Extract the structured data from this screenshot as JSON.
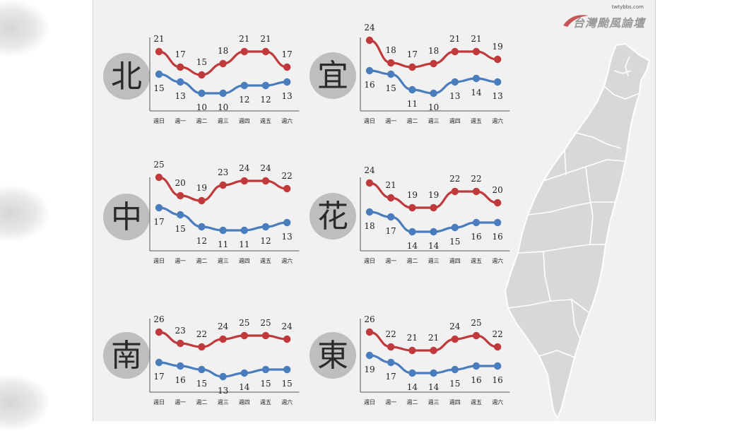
{
  "watermark": {
    "url": "twtybbs.com",
    "name": "台灣颱風論壇"
  },
  "colors": {
    "high": "#c0393b",
    "low": "#4a7dbe",
    "circle": "#bebebe",
    "region_text": "#2a2a2a"
  },
  "chart_data": [
    {
      "type": "line",
      "region": "北",
      "categories": [
        "週日",
        "週一",
        "週二",
        "週三",
        "週四",
        "週五",
        "週六"
      ],
      "series": [
        {
          "values": [
            21,
            17,
            15,
            18,
            21,
            21,
            17
          ]
        },
        {
          "values": [
            15,
            13,
            10,
            10,
            12,
            12,
            13
          ]
        }
      ]
    },
    {
      "type": "line",
      "region": "宜",
      "categories": [
        "週日",
        "週一",
        "週二",
        "週三",
        "週四",
        "週五",
        "週六"
      ],
      "series": [
        {
          "values": [
            24,
            18,
            17,
            18,
            21,
            21,
            19
          ]
        },
        {
          "values": [
            16,
            15,
            11,
            10,
            13,
            14,
            13
          ]
        }
      ]
    },
    {
      "type": "line",
      "region": "中",
      "categories": [
        "週日",
        "週一",
        "週二",
        "週三",
        "週四",
        "週五",
        "週六"
      ],
      "series": [
        {
          "values": [
            25,
            20,
            19,
            23,
            24,
            24,
            22
          ]
        },
        {
          "values": [
            17,
            15,
            12,
            11,
            11,
            12,
            13
          ]
        }
      ]
    },
    {
      "type": "line",
      "region": "花",
      "categories": [
        "週日",
        "週一",
        "週二",
        "週三",
        "週四",
        "週五",
        "週六"
      ],
      "series": [
        {
          "values": [
            24,
            21,
            19,
            19,
            22,
            22,
            20
          ]
        },
        {
          "values": [
            18,
            17,
            14,
            14,
            15,
            16,
            16
          ]
        }
      ]
    },
    {
      "type": "line",
      "region": "南",
      "categories": [
        "週日",
        "週一",
        "週二",
        "週三",
        "週四",
        "週五",
        "週六"
      ],
      "series": [
        {
          "values": [
            26,
            23,
            22,
            24,
            25,
            25,
            24
          ]
        },
        {
          "values": [
            17,
            16,
            15,
            13,
            14,
            15,
            15
          ]
        }
      ]
    },
    {
      "type": "line",
      "region": "東",
      "categories": [
        "週日",
        "週一",
        "週二",
        "週三",
        "週四",
        "週五",
        "週六"
      ],
      "series": [
        {
          "values": [
            26,
            22,
            21,
            21,
            24,
            25,
            22
          ]
        },
        {
          "values": [
            19,
            17,
            14,
            14,
            15,
            16,
            16
          ]
        }
      ]
    }
  ]
}
